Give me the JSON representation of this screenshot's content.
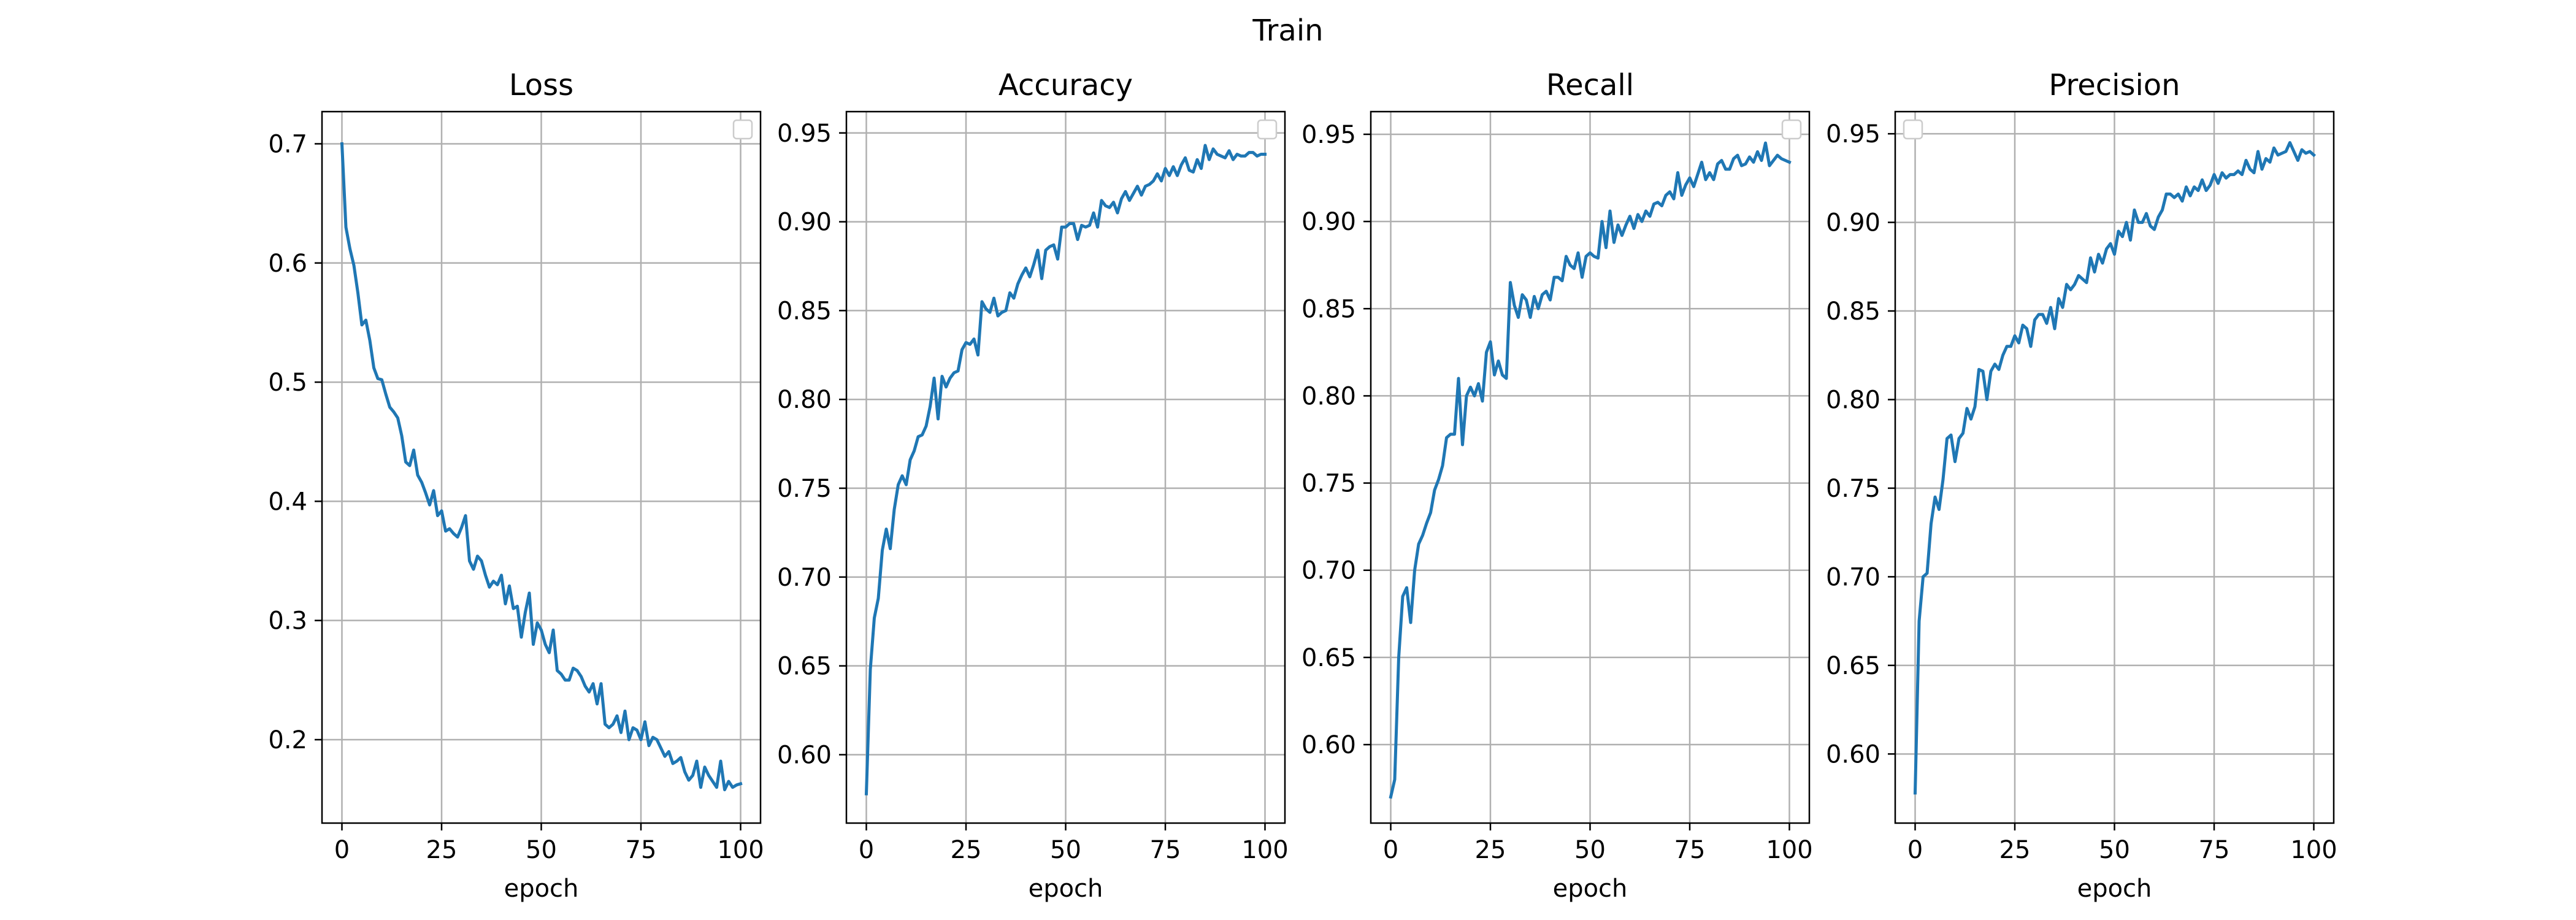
{
  "figure": {
    "suptitle": "Train"
  },
  "chart_data": [
    {
      "type": "line",
      "title": "Loss",
      "xlabel": "epoch",
      "ylabel": "",
      "xlim": [
        -5,
        105
      ],
      "ylim": [
        0.13,
        0.727
      ],
      "xticks": [
        0,
        25,
        50,
        75,
        100
      ],
      "yticks": [
        0.2,
        0.3,
        0.4,
        0.5,
        0.6,
        0.7
      ],
      "grid": true,
      "legend": "top-right",
      "series": [
        {
          "color": "#1f77b4",
          "x": [
            0,
            1,
            2,
            3,
            4,
            5,
            6,
            7,
            8,
            9,
            10,
            11,
            12,
            13,
            14,
            15,
            16,
            17,
            18,
            19,
            20,
            21,
            22,
            23,
            24,
            25,
            26,
            27,
            28,
            29,
            30,
            31,
            32,
            33,
            34,
            35,
            36,
            37,
            38,
            39,
            40,
            41,
            42,
            43,
            44,
            45,
            46,
            47,
            48,
            49,
            50,
            51,
            52,
            53,
            54,
            55,
            56,
            57,
            58,
            59,
            60,
            61,
            62,
            63,
            64,
            65,
            66,
            67,
            68,
            69,
            70,
            71,
            72,
            73,
            74,
            75,
            76,
            77,
            78,
            79,
            80,
            81,
            82,
            83,
            84,
            85,
            86,
            87,
            88,
            89,
            90,
            91,
            92,
            93,
            94,
            95,
            96,
            97,
            98,
            99,
            100
          ],
          "y": [
            0.7,
            0.63,
            0.612,
            0.598,
            0.575,
            0.548,
            0.552,
            0.535,
            0.512,
            0.503,
            0.502,
            0.49,
            0.479,
            0.475,
            0.47,
            0.455,
            0.433,
            0.43,
            0.443,
            0.422,
            0.416,
            0.407,
            0.397,
            0.409,
            0.388,
            0.392,
            0.375,
            0.377,
            0.373,
            0.37,
            0.378,
            0.388,
            0.35,
            0.343,
            0.354,
            0.35,
            0.338,
            0.328,
            0.333,
            0.33,
            0.338,
            0.314,
            0.329,
            0.31,
            0.312,
            0.286,
            0.307,
            0.323,
            0.28,
            0.298,
            0.292,
            0.28,
            0.273,
            0.292,
            0.258,
            0.255,
            0.25,
            0.25,
            0.26,
            0.258,
            0.253,
            0.245,
            0.24,
            0.247,
            0.23,
            0.247,
            0.213,
            0.21,
            0.213,
            0.22,
            0.206,
            0.224,
            0.2,
            0.21,
            0.208,
            0.2,
            0.215,
            0.195,
            0.202,
            0.2,
            0.193,
            0.186,
            0.19,
            0.18,
            0.182,
            0.185,
            0.173,
            0.166,
            0.17,
            0.182,
            0.16,
            0.177,
            0.17,
            0.165,
            0.16,
            0.182,
            0.158,
            0.165,
            0.16,
            0.162,
            0.163
          ]
        }
      ]
    },
    {
      "type": "line",
      "title": "Accuracy",
      "xlabel": "epoch",
      "ylabel": "",
      "xlim": [
        -5,
        105
      ],
      "ylim": [
        0.5615,
        0.962
      ],
      "xticks": [
        0,
        25,
        50,
        75,
        100
      ],
      "yticks": [
        0.6,
        0.65,
        0.7,
        0.75,
        0.8,
        0.85,
        0.9,
        0.95
      ],
      "grid": true,
      "legend": "top-right",
      "series": [
        {
          "color": "#1f77b4",
          "x": [
            0,
            1,
            2,
            3,
            4,
            5,
            6,
            7,
            8,
            9,
            10,
            11,
            12,
            13,
            14,
            15,
            16,
            17,
            18,
            19,
            20,
            21,
            22,
            23,
            24,
            25,
            26,
            27,
            28,
            29,
            30,
            31,
            32,
            33,
            34,
            35,
            36,
            37,
            38,
            39,
            40,
            41,
            42,
            43,
            44,
            45,
            46,
            47,
            48,
            49,
            50,
            51,
            52,
            53,
            54,
            55,
            56,
            57,
            58,
            59,
            60,
            61,
            62,
            63,
            64,
            65,
            66,
            67,
            68,
            69,
            70,
            71,
            72,
            73,
            74,
            75,
            76,
            77,
            78,
            79,
            80,
            81,
            82,
            83,
            84,
            85,
            86,
            87,
            88,
            89,
            90,
            91,
            92,
            93,
            94,
            95,
            96,
            97,
            98,
            99,
            100
          ],
          "y": [
            0.578,
            0.648,
            0.677,
            0.688,
            0.715,
            0.727,
            0.716,
            0.738,
            0.752,
            0.757,
            0.752,
            0.766,
            0.771,
            0.779,
            0.78,
            0.785,
            0.796,
            0.812,
            0.789,
            0.813,
            0.807,
            0.812,
            0.815,
            0.816,
            0.828,
            0.832,
            0.831,
            0.834,
            0.825,
            0.855,
            0.851,
            0.849,
            0.857,
            0.847,
            0.849,
            0.85,
            0.86,
            0.857,
            0.865,
            0.87,
            0.874,
            0.869,
            0.876,
            0.884,
            0.868,
            0.884,
            0.886,
            0.887,
            0.879,
            0.897,
            0.897,
            0.899,
            0.899,
            0.89,
            0.898,
            0.897,
            0.898,
            0.905,
            0.897,
            0.912,
            0.909,
            0.908,
            0.911,
            0.905,
            0.913,
            0.917,
            0.912,
            0.916,
            0.92,
            0.915,
            0.92,
            0.921,
            0.923,
            0.927,
            0.923,
            0.93,
            0.926,
            0.931,
            0.926,
            0.932,
            0.936,
            0.929,
            0.928,
            0.935,
            0.93,
            0.943,
            0.935,
            0.941,
            0.938,
            0.937,
            0.936,
            0.94,
            0.935,
            0.938,
            0.937,
            0.937,
            0.939,
            0.939,
            0.937,
            0.938,
            0.938
          ]
        }
      ]
    },
    {
      "type": "line",
      "title": "Recall",
      "xlabel": "epoch",
      "ylabel": "",
      "xlim": [
        -5,
        105
      ],
      "ylim": [
        0.555,
        0.963
      ],
      "xticks": [
        0,
        25,
        50,
        75,
        100
      ],
      "yticks": [
        0.6,
        0.65,
        0.7,
        0.75,
        0.8,
        0.85,
        0.9,
        0.95
      ],
      "grid": true,
      "legend": "top-right",
      "series": [
        {
          "color": "#1f77b4",
          "x": [
            0,
            1,
            2,
            3,
            4,
            5,
            6,
            7,
            8,
            9,
            10,
            11,
            12,
            13,
            14,
            15,
            16,
            17,
            18,
            19,
            20,
            21,
            22,
            23,
            24,
            25,
            26,
            27,
            28,
            29,
            30,
            31,
            32,
            33,
            34,
            35,
            36,
            37,
            38,
            39,
            40,
            41,
            42,
            43,
            44,
            45,
            46,
            47,
            48,
            49,
            50,
            51,
            52,
            53,
            54,
            55,
            56,
            57,
            58,
            59,
            60,
            61,
            62,
            63,
            64,
            65,
            66,
            67,
            68,
            69,
            70,
            71,
            72,
            73,
            74,
            75,
            76,
            77,
            78,
            79,
            80,
            81,
            82,
            83,
            84,
            85,
            86,
            87,
            88,
            89,
            90,
            91,
            92,
            93,
            94,
            95,
            96,
            97,
            98,
            99,
            100
          ],
          "y": [
            0.57,
            0.58,
            0.65,
            0.685,
            0.69,
            0.67,
            0.7,
            0.715,
            0.72,
            0.727,
            0.733,
            0.746,
            0.752,
            0.76,
            0.776,
            0.778,
            0.778,
            0.81,
            0.772,
            0.8,
            0.805,
            0.8,
            0.807,
            0.797,
            0.825,
            0.831,
            0.812,
            0.82,
            0.812,
            0.81,
            0.865,
            0.852,
            0.845,
            0.858,
            0.855,
            0.845,
            0.857,
            0.85,
            0.858,
            0.86,
            0.855,
            0.868,
            0.868,
            0.866,
            0.88,
            0.875,
            0.873,
            0.882,
            0.868,
            0.88,
            0.882,
            0.88,
            0.879,
            0.9,
            0.885,
            0.906,
            0.888,
            0.898,
            0.892,
            0.898,
            0.903,
            0.896,
            0.904,
            0.9,
            0.906,
            0.903,
            0.91,
            0.911,
            0.909,
            0.915,
            0.917,
            0.913,
            0.928,
            0.915,
            0.921,
            0.925,
            0.92,
            0.927,
            0.934,
            0.924,
            0.928,
            0.924,
            0.933,
            0.935,
            0.93,
            0.93,
            0.936,
            0.938,
            0.932,
            0.933,
            0.937,
            0.934,
            0.94,
            0.935,
            0.945,
            0.932,
            0.935,
            0.938,
            0.936,
            0.935,
            0.934
          ]
        }
      ]
    },
    {
      "type": "line",
      "title": "Precision",
      "xlabel": "epoch",
      "ylabel": "",
      "xlim": [
        -5,
        105
      ],
      "ylim": [
        0.561,
        0.9625
      ],
      "xticks": [
        0,
        25,
        50,
        75,
        100
      ],
      "yticks": [
        0.6,
        0.65,
        0.7,
        0.75,
        0.8,
        0.85,
        0.9,
        0.95
      ],
      "grid": true,
      "legend": "top-left",
      "series": [
        {
          "color": "#1f77b4",
          "x": [
            0,
            1,
            2,
            3,
            4,
            5,
            6,
            7,
            8,
            9,
            10,
            11,
            12,
            13,
            14,
            15,
            16,
            17,
            18,
            19,
            20,
            21,
            22,
            23,
            24,
            25,
            26,
            27,
            28,
            29,
            30,
            31,
            32,
            33,
            34,
            35,
            36,
            37,
            38,
            39,
            40,
            41,
            42,
            43,
            44,
            45,
            46,
            47,
            48,
            49,
            50,
            51,
            52,
            53,
            54,
            55,
            56,
            57,
            58,
            59,
            60,
            61,
            62,
            63,
            64,
            65,
            66,
            67,
            68,
            69,
            70,
            71,
            72,
            73,
            74,
            75,
            76,
            77,
            78,
            79,
            80,
            81,
            82,
            83,
            84,
            85,
            86,
            87,
            88,
            89,
            90,
            91,
            92,
            93,
            94,
            95,
            96,
            97,
            98,
            99,
            100
          ],
          "y": [
            0.578,
            0.675,
            0.7,
            0.702,
            0.73,
            0.745,
            0.738,
            0.755,
            0.778,
            0.78,
            0.765,
            0.778,
            0.781,
            0.795,
            0.789,
            0.796,
            0.817,
            0.816,
            0.8,
            0.816,
            0.82,
            0.817,
            0.825,
            0.83,
            0.83,
            0.836,
            0.832,
            0.842,
            0.84,
            0.83,
            0.845,
            0.848,
            0.848,
            0.843,
            0.852,
            0.84,
            0.857,
            0.852,
            0.865,
            0.862,
            0.865,
            0.87,
            0.868,
            0.866,
            0.88,
            0.872,
            0.882,
            0.877,
            0.885,
            0.888,
            0.882,
            0.895,
            0.892,
            0.9,
            0.89,
            0.907,
            0.9,
            0.9,
            0.905,
            0.898,
            0.896,
            0.903,
            0.907,
            0.916,
            0.916,
            0.914,
            0.916,
            0.912,
            0.92,
            0.915,
            0.92,
            0.918,
            0.924,
            0.918,
            0.921,
            0.927,
            0.922,
            0.928,
            0.925,
            0.927,
            0.927,
            0.929,
            0.927,
            0.935,
            0.93,
            0.928,
            0.94,
            0.93,
            0.936,
            0.934,
            0.942,
            0.938,
            0.939,
            0.94,
            0.945,
            0.94,
            0.935,
            0.941,
            0.939,
            0.94,
            0.938
          ]
        }
      ]
    }
  ]
}
